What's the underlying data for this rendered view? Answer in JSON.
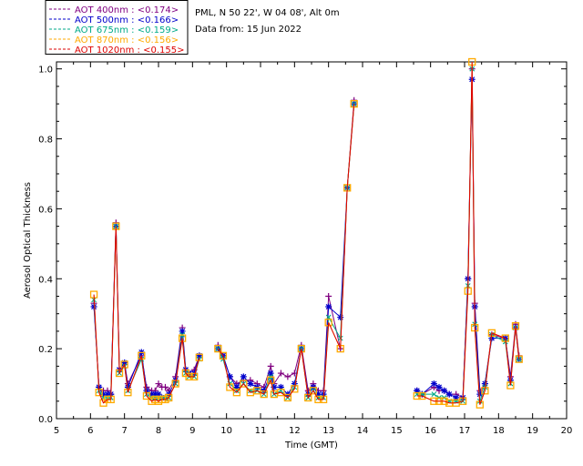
{
  "info": {
    "location": "PML, N 50 22', W 04 08', Alt 0m",
    "data_from": "Data from: 15 Jun 2022"
  },
  "chart_data": {
    "type": "line",
    "xlabel": "Time (GMT)",
    "ylabel": "Aerosol Optical Thickness",
    "xlim": [
      5,
      20
    ],
    "ylim": [
      0,
      1.02
    ],
    "xticks": [
      "5",
      "6",
      "7",
      "8",
      "9",
      "10",
      "11",
      "12",
      "13",
      "14",
      "15",
      "16",
      "17",
      "18",
      "19",
      "20"
    ],
    "yticks": [
      "0.0",
      "0.2",
      "0.4",
      "0.6",
      "0.8",
      "1.0"
    ],
    "grid": false,
    "legend_position": "top-left",
    "series": [
      {
        "name": "AOT  400nm : <0.174>",
        "color": "#800080",
        "marker": "plus",
        "x": [
          6.1,
          6.25,
          6.38,
          6.5,
          6.6,
          6.75,
          6.85,
          7.0,
          7.1,
          7.5,
          7.65,
          7.8,
          7.9,
          8.0,
          8.1,
          8.2,
          8.3,
          8.5,
          8.7,
          8.8,
          8.9,
          9.05,
          9.2,
          9.75,
          9.9,
          10.1,
          10.3,
          10.5,
          10.7,
          10.9,
          11.1,
          11.3,
          11.4,
          11.6,
          11.8,
          12.0,
          12.2,
          12.4,
          12.55,
          12.7,
          12.85,
          13.0,
          13.35,
          13.55,
          13.75,
          15.6,
          15.75,
          16.1,
          16.25,
          16.4,
          16.55,
          16.75,
          16.95,
          17.1,
          17.22,
          17.3,
          17.45,
          17.6,
          17.8,
          18.2,
          18.35,
          18.5,
          18.6
        ],
        "y": [
          0.33,
          0.09,
          0.08,
          0.08,
          0.07,
          0.56,
          0.14,
          0.16,
          0.1,
          0.18,
          0.09,
          0.08,
          0.08,
          0.1,
          0.09,
          0.09,
          0.08,
          0.12,
          0.26,
          0.14,
          0.13,
          0.14,
          0.18,
          0.21,
          0.18,
          0.12,
          0.1,
          0.11,
          0.11,
          0.1,
          0.09,
          0.15,
          0.1,
          0.13,
          0.12,
          0.13,
          0.21,
          0.08,
          0.1,
          0.08,
          0.08,
          0.35,
          0.2,
          0.66,
          0.91,
          0.08,
          0.07,
          0.09,
          0.08,
          0.08,
          0.07,
          0.07,
          0.06,
          0.4,
          1.0,
          0.33,
          0.08,
          0.1,
          0.24,
          0.23,
          0.12,
          0.27,
          0.18
        ]
      },
      {
        "name": "AOT  500nm : <0.166>",
        "color": "#0000cc",
        "marker": "star",
        "x": [
          6.1,
          6.25,
          6.38,
          6.5,
          6.6,
          6.75,
          6.85,
          7.0,
          7.1,
          7.5,
          7.65,
          7.8,
          7.9,
          8.0,
          8.1,
          8.2,
          8.3,
          8.5,
          8.7,
          8.8,
          8.9,
          9.05,
          9.2,
          9.75,
          9.9,
          10.1,
          10.3,
          10.5,
          10.7,
          10.9,
          11.1,
          11.3,
          11.4,
          11.6,
          11.8,
          12.0,
          12.2,
          12.4,
          12.55,
          12.7,
          12.85,
          13.0,
          13.35,
          13.55,
          13.75,
          15.6,
          15.75,
          16.1,
          16.25,
          16.4,
          16.55,
          16.75,
          16.95,
          17.1,
          17.22,
          17.3,
          17.45,
          17.6,
          17.8,
          18.2,
          18.35,
          18.5,
          18.6
        ],
        "y": [
          0.32,
          0.09,
          0.07,
          0.07,
          0.07,
          0.55,
          0.14,
          0.16,
          0.09,
          0.19,
          0.08,
          0.07,
          0.07,
          0.07,
          0.06,
          0.06,
          0.07,
          0.11,
          0.25,
          0.14,
          0.13,
          0.13,
          0.18,
          0.2,
          0.18,
          0.12,
          0.09,
          0.12,
          0.1,
          0.09,
          0.08,
          0.13,
          0.09,
          0.09,
          0.07,
          0.1,
          0.2,
          0.07,
          0.09,
          0.07,
          0.07,
          0.32,
          0.29,
          0.66,
          0.9,
          0.08,
          0.07,
          0.1,
          0.09,
          0.08,
          0.07,
          0.06,
          0.06,
          0.4,
          0.97,
          0.32,
          0.07,
          0.1,
          0.23,
          0.23,
          0.11,
          0.26,
          0.17
        ]
      },
      {
        "name": "AOT  675nm : <0.159>",
        "color": "#00aa88",
        "marker": "x",
        "x": [
          6.1,
          6.25,
          6.38,
          6.5,
          6.6,
          6.75,
          6.85,
          7.0,
          7.1,
          7.5,
          7.65,
          7.8,
          7.9,
          8.0,
          8.1,
          8.2,
          8.3,
          8.5,
          8.7,
          8.8,
          8.9,
          9.05,
          9.2,
          9.75,
          9.9,
          10.1,
          10.3,
          10.5,
          10.7,
          10.9,
          11.1,
          11.3,
          11.4,
          11.6,
          11.8,
          12.0,
          12.2,
          12.4,
          12.55,
          12.7,
          12.85,
          13.0,
          13.35,
          13.55,
          13.75,
          15.6,
          15.75,
          16.1,
          16.25,
          16.4,
          16.55,
          16.75,
          16.95,
          17.1,
          17.22,
          17.3,
          17.45,
          17.6,
          17.8,
          18.2,
          18.35,
          18.5,
          18.6
        ],
        "y": [
          0.34,
          0.08,
          0.06,
          0.06,
          0.06,
          0.55,
          0.13,
          0.15,
          0.08,
          0.17,
          0.07,
          0.06,
          0.06,
          0.06,
          0.06,
          0.06,
          0.06,
          0.1,
          0.24,
          0.13,
          0.12,
          0.12,
          0.17,
          0.2,
          0.17,
          0.1,
          0.08,
          0.1,
          0.08,
          0.08,
          0.07,
          0.12,
          0.07,
          0.08,
          0.06,
          0.09,
          0.2,
          0.06,
          0.08,
          0.06,
          0.06,
          0.29,
          0.23,
          0.66,
          0.9,
          0.07,
          0.07,
          0.07,
          0.06,
          0.06,
          0.05,
          0.05,
          0.05,
          0.38,
          1.0,
          0.27,
          0.05,
          0.09,
          0.24,
          0.22,
          0.1,
          0.26,
          0.17
        ]
      },
      {
        "name": "AOT  870nm : <0.156>",
        "color": "#ffaa00",
        "marker": "square",
        "x": [
          6.1,
          6.25,
          6.38,
          6.5,
          6.6,
          6.75,
          6.85,
          7.0,
          7.1,
          7.5,
          7.65,
          7.8,
          7.9,
          8.0,
          8.1,
          8.2,
          8.3,
          8.5,
          8.7,
          8.8,
          8.9,
          9.05,
          9.2,
          9.75,
          9.9,
          10.1,
          10.3,
          10.5,
          10.7,
          10.9,
          11.1,
          11.3,
          11.4,
          11.6,
          11.8,
          12.0,
          12.2,
          12.4,
          12.55,
          12.7,
          12.85,
          13.0,
          13.35,
          13.55,
          13.75,
          15.6,
          15.75,
          16.1,
          16.25,
          16.4,
          16.55,
          16.75,
          16.95,
          17.1,
          17.22,
          17.3,
          17.45,
          17.6,
          17.8,
          18.2,
          18.35,
          18.5,
          18.6
        ],
        "y": [
          0.355,
          0.075,
          0.045,
          0.055,
          0.055,
          0.55,
          0.13,
          0.155,
          0.075,
          0.18,
          0.065,
          0.05,
          0.055,
          0.05,
          0.055,
          0.055,
          0.06,
          0.1,
          0.23,
          0.13,
          0.12,
          0.12,
          0.175,
          0.2,
          0.18,
          0.09,
          0.075,
          0.1,
          0.075,
          0.08,
          0.07,
          0.11,
          0.07,
          0.075,
          0.06,
          0.085,
          0.2,
          0.06,
          0.08,
          0.055,
          0.055,
          0.275,
          0.2,
          0.66,
          0.9,
          0.065,
          0.065,
          0.05,
          0.05,
          0.05,
          0.045,
          0.045,
          0.05,
          0.365,
          1.02,
          0.26,
          0.04,
          0.08,
          0.245,
          0.23,
          0.095,
          0.265,
          0.17
        ]
      },
      {
        "name": "AOT 1020nm : <0.155>",
        "color": "#dd0000",
        "marker": "none",
        "x": [
          6.1,
          6.25,
          6.38,
          6.5,
          6.6,
          6.75,
          6.85,
          7.0,
          7.1,
          7.5,
          7.65,
          7.8,
          7.9,
          8.0,
          8.1,
          8.2,
          8.3,
          8.5,
          8.7,
          8.8,
          8.9,
          9.05,
          9.2,
          9.75,
          9.9,
          10.1,
          10.3,
          10.5,
          10.7,
          10.9,
          11.1,
          11.3,
          11.4,
          11.6,
          11.8,
          12.0,
          12.2,
          12.4,
          12.55,
          12.7,
          12.85,
          13.0,
          13.35,
          13.55,
          13.75,
          15.6,
          15.75,
          16.1,
          16.25,
          16.4,
          16.55,
          16.75,
          16.95,
          17.1,
          17.22,
          17.3,
          17.45,
          17.6,
          17.8,
          18.2,
          18.35,
          18.5,
          18.6
        ],
        "y": [
          0.355,
          0.075,
          0.045,
          0.055,
          0.055,
          0.55,
          0.13,
          0.155,
          0.075,
          0.18,
          0.065,
          0.05,
          0.055,
          0.05,
          0.055,
          0.055,
          0.06,
          0.1,
          0.23,
          0.13,
          0.12,
          0.12,
          0.175,
          0.2,
          0.18,
          0.09,
          0.075,
          0.1,
          0.075,
          0.08,
          0.07,
          0.11,
          0.07,
          0.075,
          0.06,
          0.085,
          0.2,
          0.06,
          0.08,
          0.055,
          0.055,
          0.275,
          0.2,
          0.66,
          0.9,
          0.065,
          0.065,
          0.05,
          0.05,
          0.05,
          0.045,
          0.045,
          0.05,
          0.365,
          1.02,
          0.26,
          0.04,
          0.08,
          0.245,
          0.23,
          0.095,
          0.265,
          0.17
        ]
      }
    ]
  }
}
